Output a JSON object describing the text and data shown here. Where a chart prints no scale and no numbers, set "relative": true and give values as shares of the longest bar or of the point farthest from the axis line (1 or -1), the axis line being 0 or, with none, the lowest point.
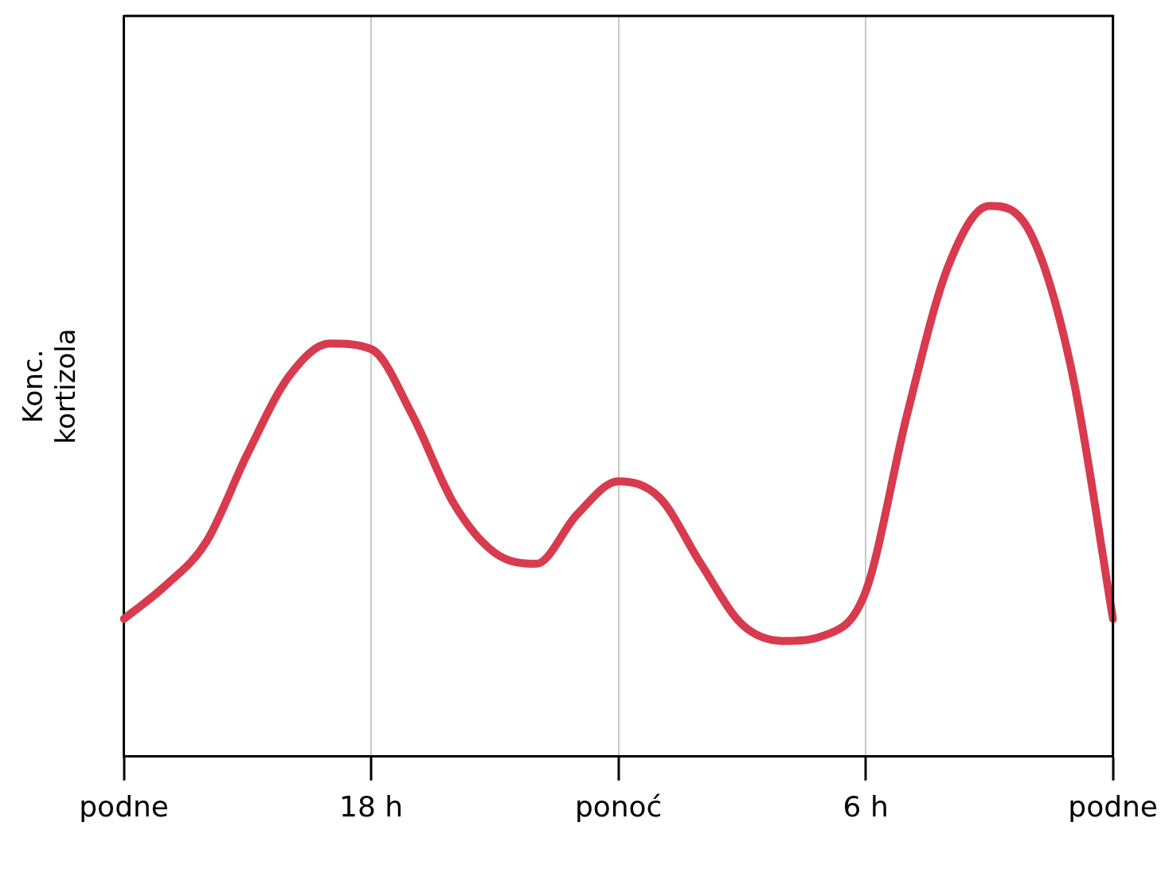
{
  "chart_data": {
    "type": "line",
    "relative": true,
    "ylabel": "Konc.\nkortizola",
    "categories": [
      "podne",
      null,
      null,
      null,
      null,
      null,
      "18 h",
      null,
      null,
      null,
      null,
      null,
      "ponoć",
      null,
      null,
      null,
      null,
      null,
      "6 h",
      null,
      null,
      null,
      null,
      null,
      "podne"
    ],
    "grid": "x",
    "marker": "none",
    "line_style": "solid",
    "series": [
      {
        "color": "#d83a4e",
        "values": [
          0.25,
          0.31,
          0.39,
          0.55,
          0.69,
          0.75,
          0.74,
          0.62,
          0.46,
          0.37,
          0.35,
          0.44,
          0.5,
          0.47,
          0.35,
          0.24,
          0.21,
          0.22,
          0.3,
          0.62,
          0.89,
          1,
          0.95,
          0.7,
          0.25
        ]
      }
    ]
  }
}
